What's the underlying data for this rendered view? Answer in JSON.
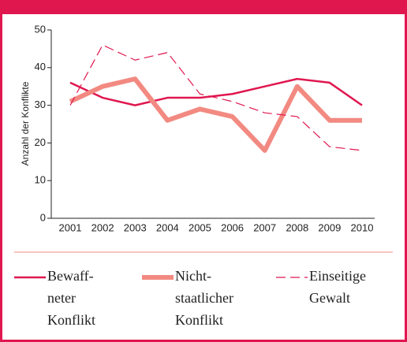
{
  "chart_data": {
    "type": "line",
    "y_label": "Anzahl der Konflikte",
    "categories": [
      "2001",
      "2002",
      "2003",
      "2004",
      "2005",
      "2006",
      "2007",
      "2008",
      "2009",
      "2010"
    ],
    "series": [
      {
        "name": [
          "Bewaff-",
          "neter",
          "Konflikt"
        ],
        "color": "#e0174f",
        "width": 2.5,
        "dash": "none",
        "values": [
          36,
          32,
          30,
          32,
          32,
          33,
          35,
          37,
          36,
          30
        ]
      },
      {
        "name": [
          "Nicht-",
          "staatlicher",
          "Konflikt"
        ],
        "color": "#f28a82",
        "width": 6,
        "dash": "none",
        "values": [
          31,
          35,
          37,
          26,
          29,
          27,
          18,
          35,
          26,
          26
        ]
      },
      {
        "name": [
          "Einseitige",
          "Gewalt"
        ],
        "color": "#e0174f",
        "width": 1.2,
        "dash": "12 6",
        "values": [
          30,
          46,
          42,
          44,
          33,
          31,
          28,
          27,
          19,
          18
        ]
      }
    ],
    "ylim": [
      0,
      50
    ],
    "yticks": [
      0,
      10,
      20,
      30,
      40,
      50
    ]
  }
}
